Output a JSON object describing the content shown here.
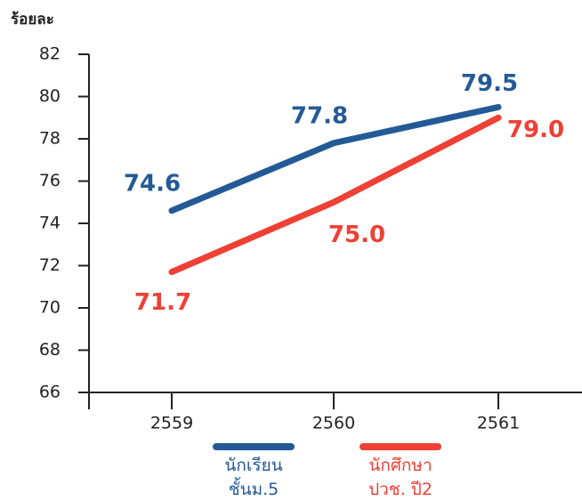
{
  "chart_data": {
    "type": "line",
    "y_label": "ร้อยละ",
    "categories": [
      "2559",
      "2560",
      "2561"
    ],
    "series": [
      {
        "name": "นักเรียน\nชั้นม.5",
        "color": "#235a96",
        "values": [
          74.6,
          77.8,
          79.5
        ],
        "value_labels": [
          "74.6",
          "77.8",
          "79.5"
        ]
      },
      {
        "name": "นักศึกษา\nปวช. ปี2",
        "color": "#ee4035",
        "values": [
          71.7,
          75.0,
          79.0
        ],
        "value_labels": [
          "71.7",
          "75.0",
          "79.0"
        ]
      }
    ],
    "ylim": [
      66,
      82
    ],
    "yticks": [
      66,
      68,
      70,
      72,
      74,
      76,
      78,
      80,
      82
    ],
    "grid": false
  }
}
